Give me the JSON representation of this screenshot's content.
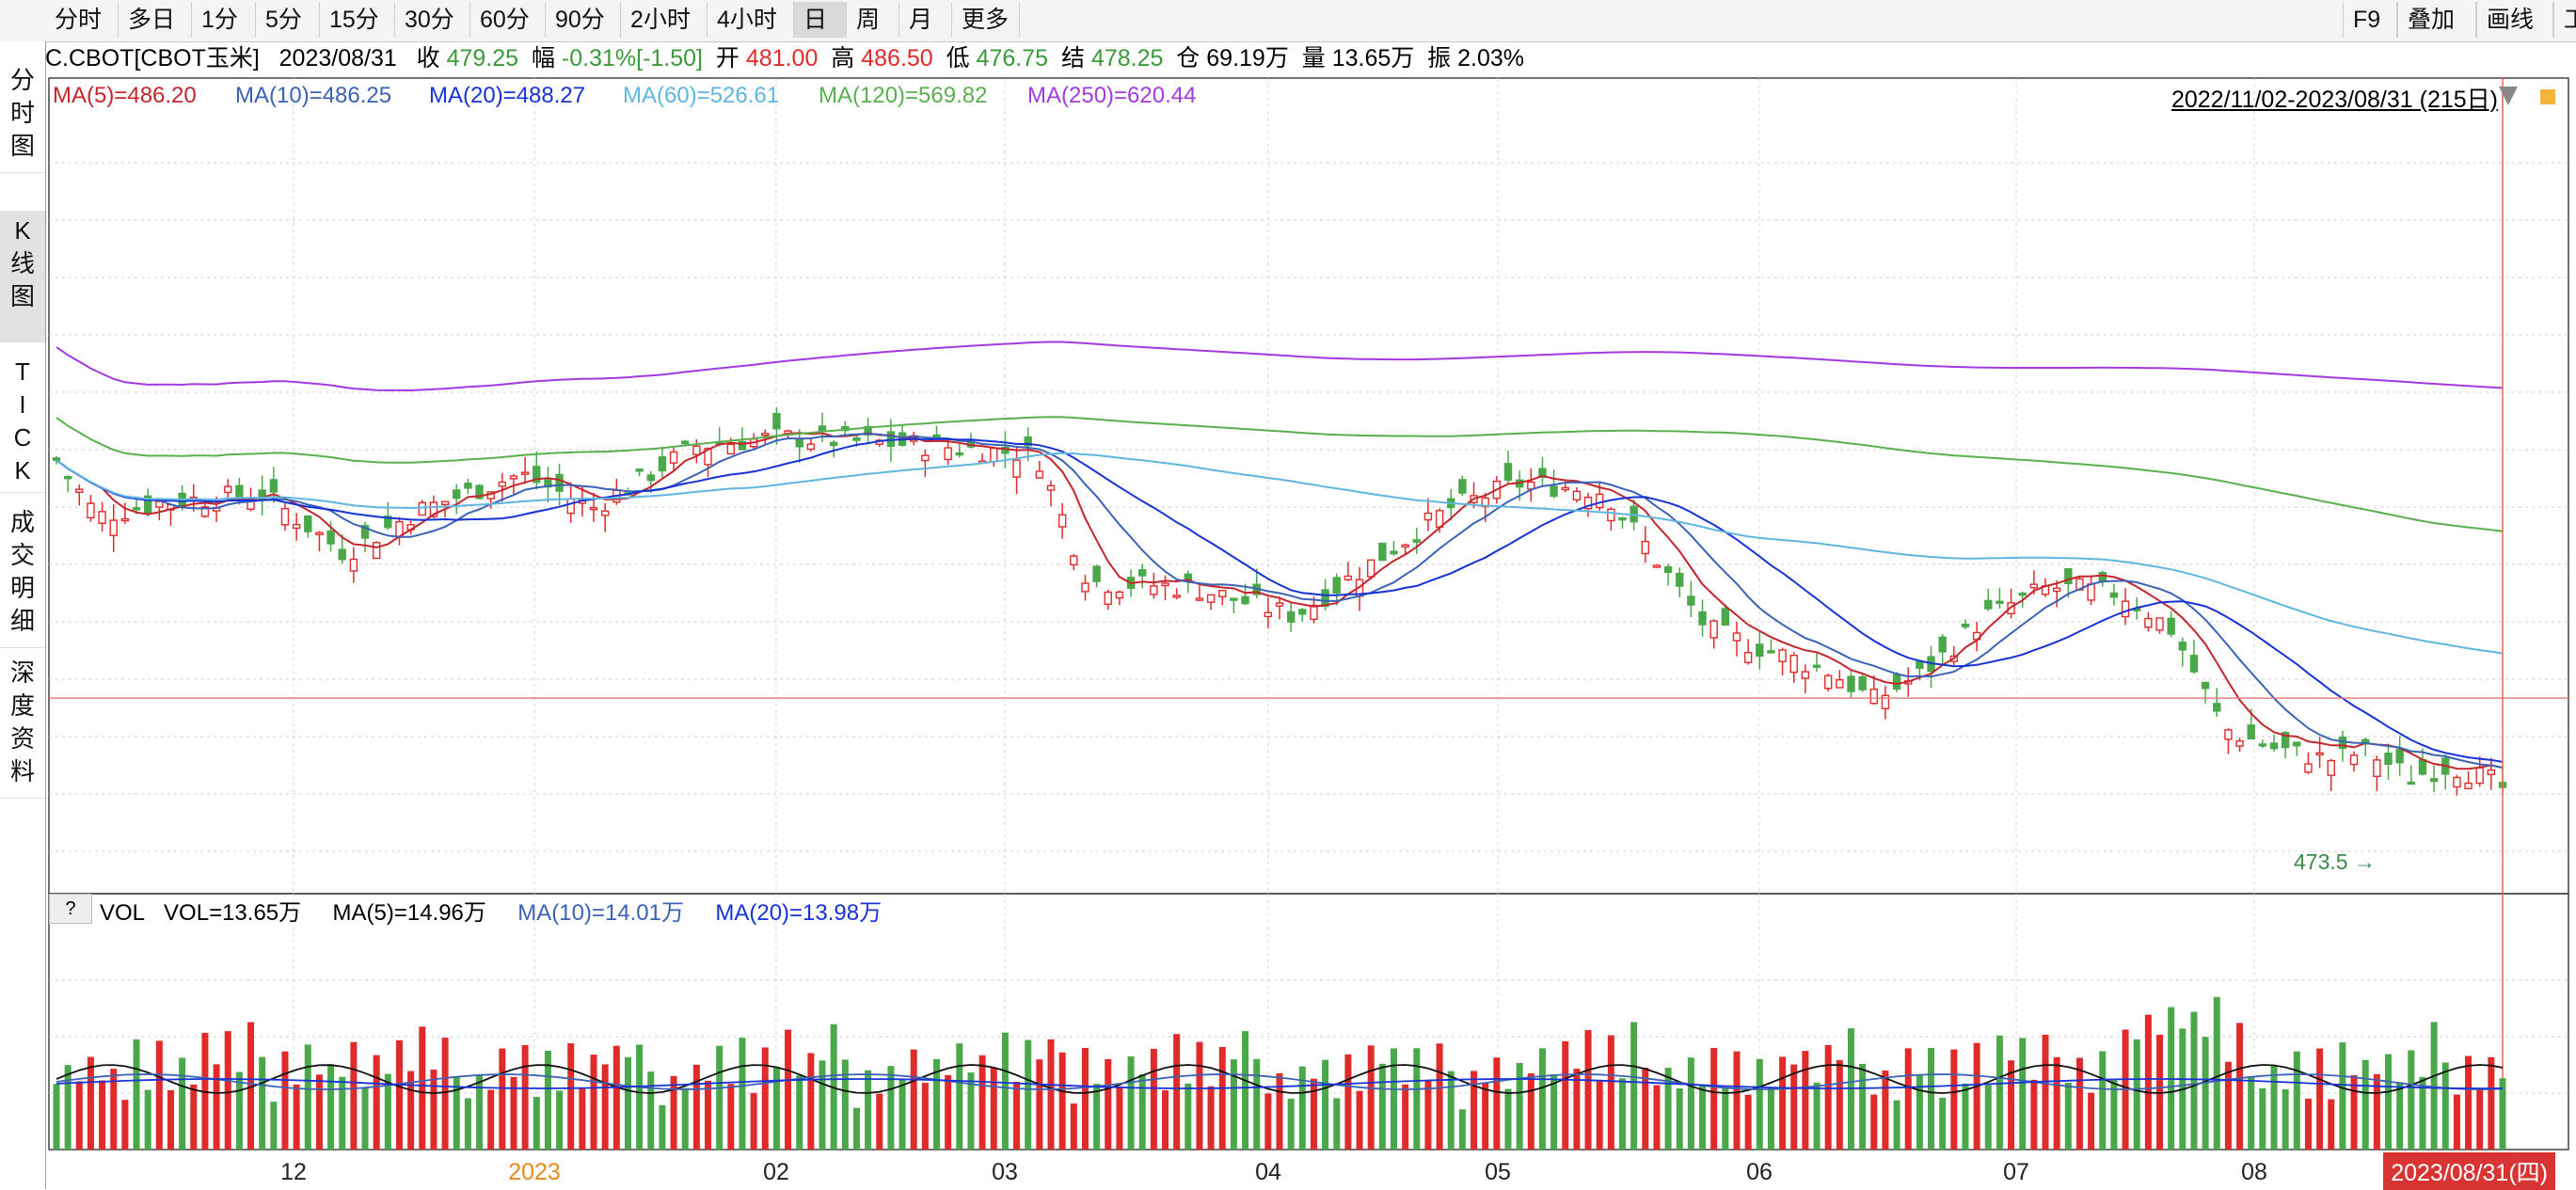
{
  "toolbar": {
    "periods": [
      "分时",
      "多日",
      "1分",
      "5分",
      "15分",
      "30分",
      "60分",
      "90分",
      "2小时",
      "4小时",
      "日",
      "周",
      "月",
      "更多"
    ],
    "active": "日",
    "right_buttons": [
      "F9",
      "叠加",
      "画线",
      "工"
    ]
  },
  "sidebar": {
    "tabs": [
      {
        "label": "分\n时\n图"
      },
      {
        "label": "K\n线\n图"
      },
      {
        "label": "T\nI\nC\nK"
      },
      {
        "label": "成\n交\n明\n细"
      },
      {
        "label": "深\n度\n资\n料"
      }
    ],
    "active_index": 1
  },
  "info": {
    "symbol": "C.CBOT[CBOT玉米]",
    "date": "2023/08/31",
    "close_label": "收",
    "close": "479.25",
    "change_label": "幅",
    "change": "-0.31%[-1.50]",
    "open_label": "开",
    "open": "481.00",
    "high_label": "高",
    "high": "486.50",
    "low_label": "低",
    "low": "476.75",
    "settle_label": "结",
    "settle": "478.25",
    "oi_label": "仓",
    "oi": "69.19万",
    "vol_label": "量",
    "vol": "13.65万",
    "amp_label": "振",
    "amp": "2.03%"
  },
  "ma_legend": [
    {
      "text": "MA(5)=486.20",
      "color": "#c4262b"
    },
    {
      "text": "MA(10)=486.25",
      "color": "#3c62b5"
    },
    {
      "text": "MA(20)=488.27",
      "color": "#1733d6"
    },
    {
      "text": "MA(60)=526.61",
      "color": "#5fb6df"
    },
    {
      "text": "MA(120)=569.82",
      "color": "#5ab04f"
    },
    {
      "text": "MA(250)=620.44",
      "color": "#a23ae0"
    }
  ],
  "range_text": "2022/11/02-2023/08/31 (215日)",
  "low_marker": "473.5",
  "vol_panel": {
    "qmark": "?",
    "title": "VOL",
    "vol": "VOL=13.65万",
    "ma5": "MA(5)=14.96万",
    "ma10": "MA(10)=14.01万",
    "ma20": "MA(20)=13.98万"
  },
  "x_labels": [
    "12",
    "2023",
    "02",
    "03",
    "04",
    "05",
    "06",
    "07",
    "08"
  ],
  "date_badge": "2023/08/31(四)",
  "colors": {
    "up": "#e12b2b",
    "down": "#4aa84a",
    "grid": "#cfcfcf"
  },
  "chart_data": {
    "type": "candlestick",
    "period": "daily",
    "start": "2022/11/02",
    "end": "2023/08/31",
    "count": 215,
    "last_bar": {
      "open": 481.0,
      "high": 486.5,
      "low": 476.75,
      "close": 479.25
    },
    "series": [
      {
        "name": "MA(5)",
        "values": [
          486.2
        ]
      },
      {
        "name": "MA(10)",
        "values": [
          486.25
        ]
      },
      {
        "name": "MA(20)",
        "values": [
          488.27
        ]
      },
      {
        "name": "MA(60)",
        "values": [
          526.61
        ]
      },
      {
        "name": "MA(120)",
        "values": [
          569.82
        ]
      },
      {
        "name": "MA(250)",
        "values": [
          620.44
        ]
      }
    ],
    "min_label": 473.5
  }
}
